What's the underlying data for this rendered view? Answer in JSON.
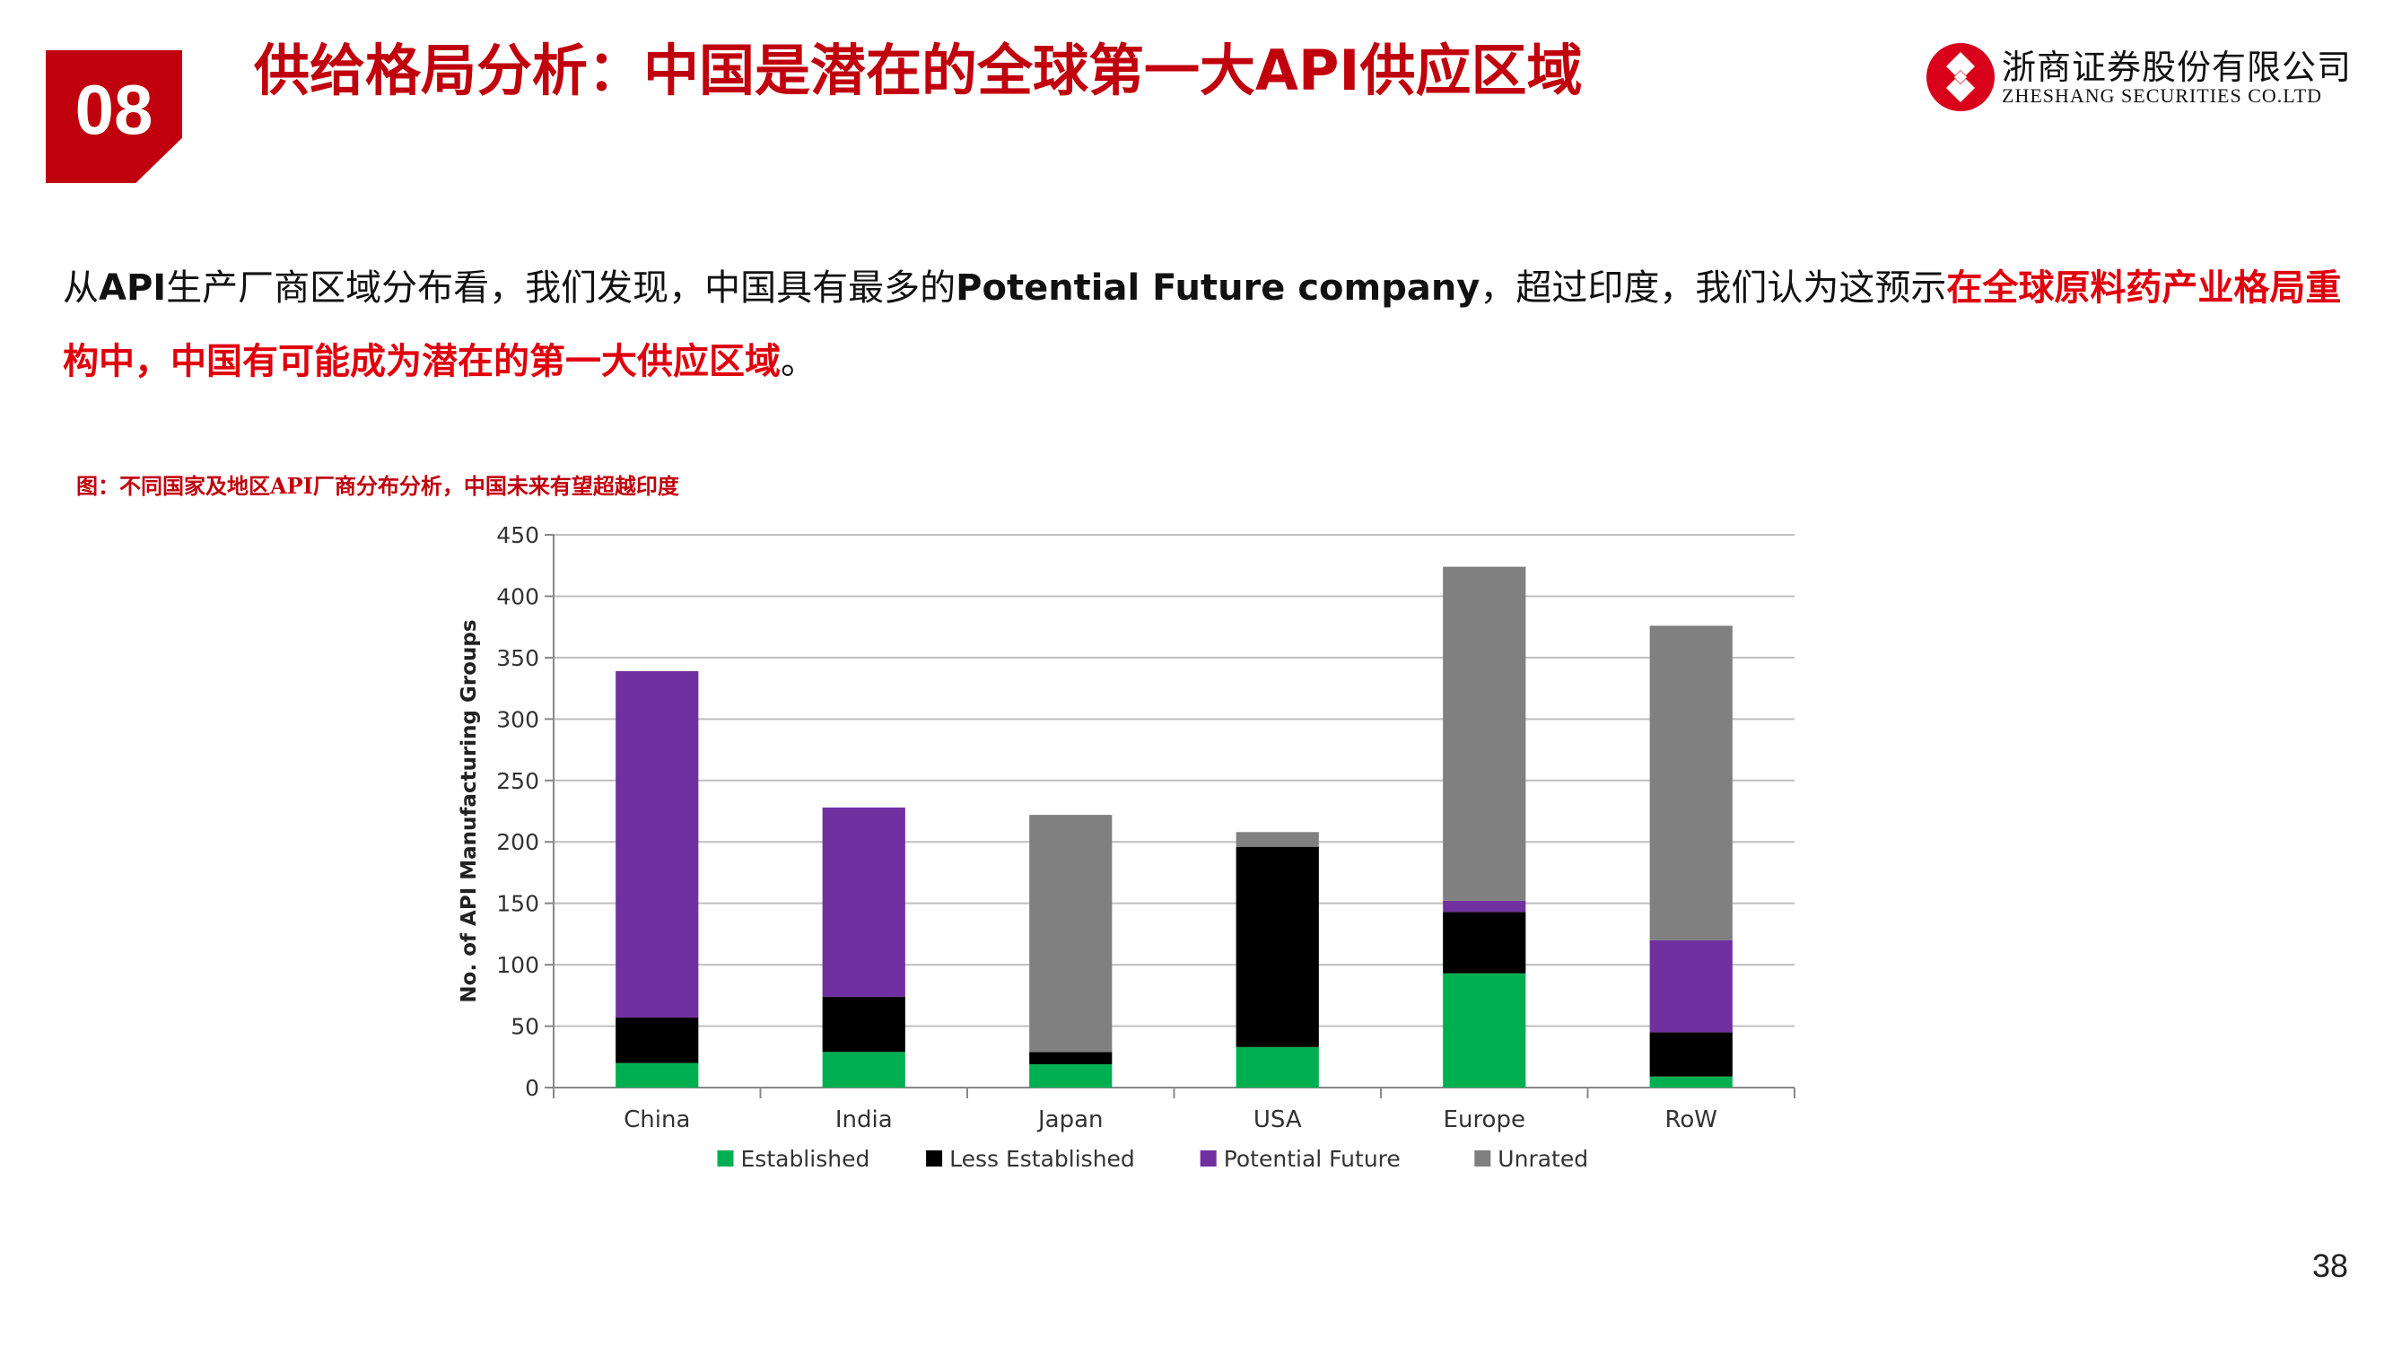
{
  "header": {
    "section_number": "08",
    "title": "供给格局分析：中国是潜在的全球第一大API供应区域"
  },
  "logo": {
    "name_cn": "浙商证券股份有限公司",
    "name_en": "ZHESHANG SECURITIES CO.LTD",
    "icon": "zheshang-logo-icon",
    "color": "#d9001b"
  },
  "body": {
    "p1": "从",
    "p2": "API",
    "p3": "生产厂商区域分布看，我们发现，中国具有最多的",
    "p4": "Potential Future company",
    "p5": "，超过印度，我们认为这预示",
    "p6": "在全球原料药产业格局重构中，中国有可能成为潜在的第一大供应区域",
    "p7": "。"
  },
  "figure_caption": "图：不同国家及地区API厂商分布分析，中国未来有望超越印度",
  "page_number": "38",
  "chart_data": {
    "type": "bar",
    "stacked": true,
    "categories": [
      "China",
      "India",
      "Japan",
      "USA",
      "Europe",
      "RoW"
    ],
    "series": [
      {
        "name": "Established",
        "color": "#00b050",
        "values": [
          20,
          29,
          19,
          33,
          93,
          9
        ]
      },
      {
        "name": "Less Established",
        "color": "#000000",
        "values": [
          37,
          45,
          10,
          163,
          50,
          36
        ]
      },
      {
        "name": "Potential Future",
        "color": "#7030a0",
        "values": [
          282,
          154,
          0,
          0,
          9,
          75
        ]
      },
      {
        "name": "Unrated",
        "color": "#808080",
        "values": [
          0,
          0,
          193,
          12,
          272,
          256
        ]
      }
    ],
    "title": "",
    "xlabel": "",
    "ylabel": "No. of API Manufacturing Groups",
    "ylim": [
      0,
      450
    ],
    "yticks": [
      0,
      50,
      100,
      150,
      200,
      250,
      300,
      350,
      400,
      450
    ],
    "grid": true,
    "legend": "bottom"
  }
}
